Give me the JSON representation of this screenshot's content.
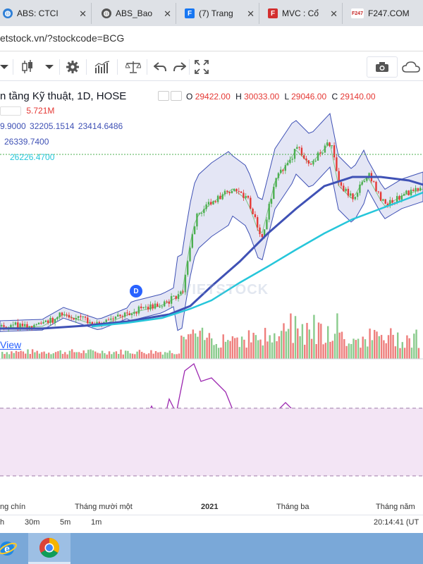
{
  "tabs": [
    {
      "label": "ABS: CTCI",
      "icon": "globe-icon"
    },
    {
      "label": "ABS_Bao",
      "icon": "globe-icon"
    },
    {
      "label": "(7) Trang",
      "icon": "facebook-icon"
    },
    {
      "label": "MVC : Cổ",
      "icon": "news-f-icon"
    },
    {
      "label": "F247.COM",
      "icon": "f247-icon"
    }
  ],
  "address": {
    "url": "etstock.vn/?stockcode=BCG"
  },
  "chart": {
    "title": "n tầng Kỹ thuật, 1D, HOSE",
    "ohlc": {
      "o_label": "O",
      "o": "29422.00",
      "h_label": "H",
      "h": "30033.00",
      "l_label": "L",
      "l": "29046.00",
      "c_label": "C",
      "c": "29140.00"
    },
    "volume": "5.721M",
    "bb": {
      "mid": "9.9000",
      "upper": "32205.1514",
      "lower": "23414.6486"
    },
    "ma1": "26339.7400",
    "ma2": "26226.4700",
    "view_link": "View",
    "dividend_marker": "D",
    "watermark": "VIETSTOCK"
  },
  "time_axis": [
    "ng chín",
    "Tháng mười một",
    "2021",
    "Tháng ba",
    "Tháng năm"
  ],
  "intervals": [
    "h",
    "30m",
    "5m",
    "1m"
  ],
  "clock": "20:14:41 (UT",
  "colors": {
    "up": "#4caf50",
    "down": "#e53935",
    "bb": "#3f51b5",
    "ma1": "#3f51b5",
    "ma2": "#26c6da",
    "rsi": "#9c27b0"
  },
  "chart_data": {
    "type": "candlestick",
    "candles_in_order": 181,
    "rsi_band": [
      30,
      70
    ]
  }
}
